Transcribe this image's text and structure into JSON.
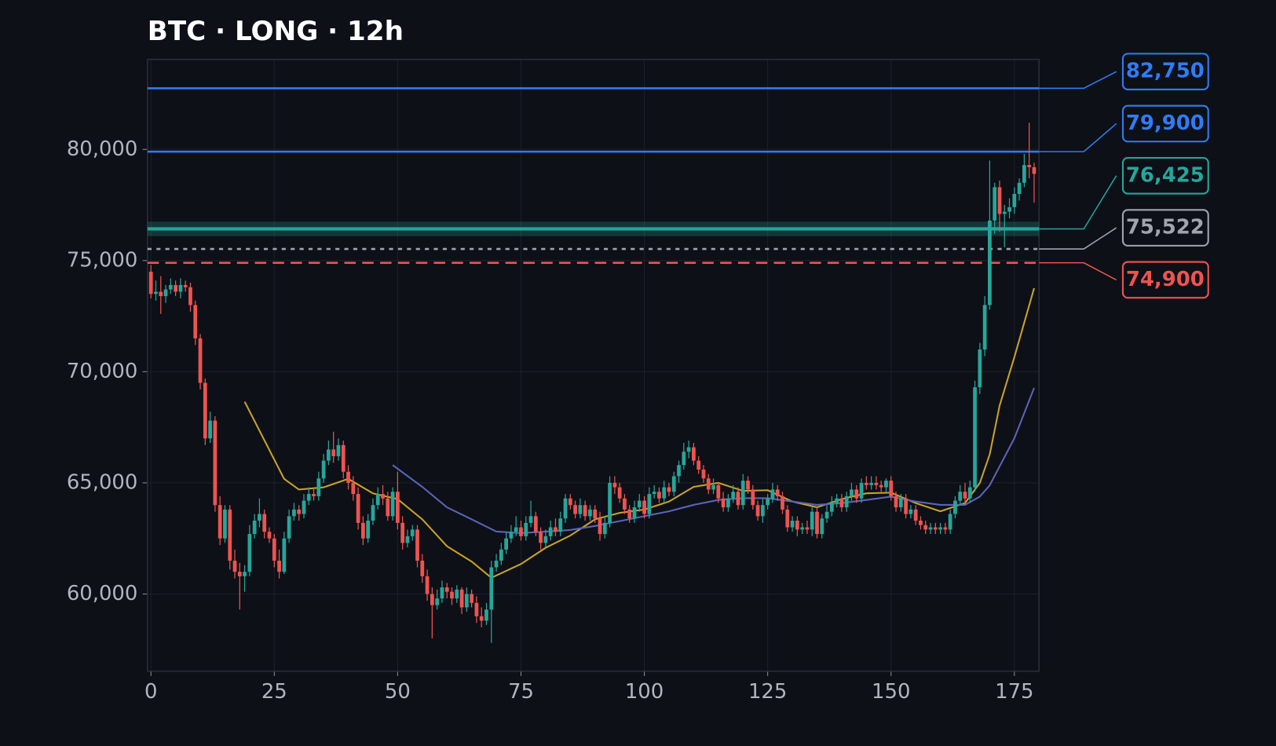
{
  "chart_data": {
    "type": "candlestick",
    "title": "BTC · LONG · 12h",
    "xlim": [
      -0.7,
      180
    ],
    "ylim": [
      56530,
      84050
    ],
    "xticks": [
      0,
      25,
      50,
      75,
      100,
      125,
      150,
      175
    ],
    "yticks": [
      {
        "value": 60000,
        "label": "60,000"
      },
      {
        "value": 65000,
        "label": "65,000"
      },
      {
        "value": 70000,
        "label": "70,000"
      },
      {
        "value": 75000,
        "label": "75,000"
      },
      {
        "value": 80000,
        "label": "80,000"
      }
    ],
    "grid": true,
    "up_color": "#26a69a",
    "down_color": "#ef5350",
    "x": [
      0,
      1,
      2,
      3,
      4,
      5,
      6,
      7,
      8,
      9,
      10,
      11,
      12,
      13,
      14,
      15,
      16,
      17,
      18,
      19,
      20,
      21,
      22,
      23,
      24,
      25,
      26,
      27,
      28,
      29,
      30,
      31,
      32,
      33,
      34,
      35,
      36,
      37,
      38,
      39,
      40,
      41,
      42,
      43,
      44,
      45,
      46,
      47,
      48,
      49,
      50,
      51,
      52,
      53,
      54,
      55,
      56,
      57,
      58,
      59,
      60,
      61,
      62,
      63,
      64,
      65,
      66,
      67,
      68,
      69,
      70,
      71,
      72,
      73,
      74,
      75,
      76,
      77,
      78,
      79,
      80,
      81,
      82,
      83,
      84,
      85,
      86,
      87,
      88,
      89,
      90,
      91,
      92,
      93,
      94,
      95,
      96,
      97,
      98,
      99,
      100,
      101,
      102,
      103,
      104,
      105,
      106,
      107,
      108,
      109,
      110,
      111,
      112,
      113,
      114,
      115,
      116,
      117,
      118,
      119,
      120,
      121,
      122,
      123,
      124,
      125,
      126,
      127,
      128,
      129,
      130,
      131,
      132,
      133,
      134,
      135,
      136,
      137,
      138,
      139,
      140,
      141,
      142,
      143,
      144,
      145,
      146,
      147,
      148,
      149,
      150,
      151,
      152,
      153,
      154,
      155,
      156,
      157,
      158,
      159,
      160,
      161,
      162,
      163,
      164,
      165,
      166,
      167,
      168,
      169,
      170,
      171,
      172,
      173,
      174,
      175,
      176,
      177,
      178,
      179
    ],
    "open": [
      74500,
      73500,
      73600,
      73400,
      73700,
      73900,
      73600,
      73900,
      73800,
      73000,
      71500,
      69500,
      67000,
      67800,
      64000,
      62500,
      63800,
      61500,
      61000,
      60800,
      61000,
      62700,
      63300,
      63600,
      62800,
      62500,
      61500,
      61000,
      62500,
      63500,
      63800,
      63600,
      64200,
      64500,
      64400,
      65200,
      66000,
      66500,
      66200,
      66700,
      65500,
      65000,
      64500,
      63200,
      62500,
      63300,
      64000,
      64500,
      64300,
      63500,
      64600,
      63200,
      62300,
      62600,
      62900,
      61500,
      60800,
      60000,
      59500,
      59800,
      60300,
      60100,
      59800,
      60200,
      59400,
      60000,
      59600,
      59000,
      58800,
      59300,
      61200,
      61500,
      62000,
      62500,
      62800,
      63000,
      62600,
      63200,
      63500,
      62800,
      62300,
      62600,
      63000,
      62800,
      63400,
      64300,
      64000,
      63600,
      64000,
      63500,
      63800,
      63400,
      62700,
      63200,
      65000,
      64800,
      64300,
      63800,
      63400,
      63900,
      64200,
      63600,
      64500,
      64600,
      64300,
      64800,
      64600,
      65300,
      65800,
      66400,
      66600,
      66000,
      65600,
      65200,
      64700,
      64900,
      64300,
      63900,
      64300,
      64600,
      64000,
      65100,
      64700,
      64000,
      63500,
      64000,
      64300,
      64700,
      64400,
      63800,
      63000,
      63300,
      62900,
      63000,
      62900,
      63700,
      62700,
      63400,
      63700,
      64100,
      64300,
      63900,
      64400,
      64700,
      64300,
      65000,
      64900,
      65000,
      64900,
      64800,
      65100,
      64400,
      63900,
      64300,
      63600,
      63800,
      63300,
      63100,
      62900,
      63000,
      62900,
      63000,
      62900,
      63600,
      64200,
      64600,
      64300,
      64800,
      69300,
      71000,
      73000,
      76800,
      78300,
      77100,
      77200,
      77400,
      78000,
      78500,
      79300,
      79200
    ],
    "high": [
      74800,
      74100,
      74300,
      73900,
      74200,
      74100,
      74200,
      74100,
      74000,
      73200,
      71700,
      69700,
      68200,
      68000,
      64400,
      64000,
      64000,
      62000,
      61400,
      61300,
      63100,
      63600,
      64300,
      63800,
      63000,
      62700,
      62000,
      62800,
      63800,
      64100,
      64000,
      64500,
      64800,
      64800,
      65500,
      66300,
      66900,
      67300,
      67000,
      66900,
      65800,
      65300,
      64800,
      63500,
      63600,
      64300,
      64800,
      64900,
      64600,
      64800,
      65500,
      63500,
      62900,
      63100,
      63100,
      61800,
      61100,
      60300,
      60200,
      60600,
      60500,
      60300,
      60400,
      60300,
      60300,
      60200,
      59900,
      59400,
      59600,
      61500,
      61800,
      62300,
      62800,
      63100,
      63500,
      63300,
      63500,
      64200,
      63700,
      63000,
      62900,
      63300,
      63400,
      63700,
      64500,
      64500,
      64200,
      64300,
      64200,
      64000,
      64000,
      63700,
      63500,
      65300,
      65300,
      65000,
      64500,
      64000,
      64200,
      64500,
      64400,
      64800,
      64900,
      64800,
      65100,
      65000,
      65500,
      66000,
      66800,
      66900,
      66800,
      66200,
      65800,
      65400,
      65200,
      65000,
      64600,
      64500,
      64900,
      64800,
      65400,
      65300,
      64900,
      64200,
      64300,
      64500,
      65000,
      64900,
      64600,
      64000,
      63500,
      63500,
      63200,
      63300,
      63900,
      63900,
      63600,
      64000,
      64400,
      64500,
      64500,
      64600,
      65000,
      64900,
      65200,
      65300,
      65300,
      65300,
      65100,
      65200,
      65300,
      64600,
      64500,
      64500,
      64000,
      64000,
      63500,
      63300,
      63200,
      63200,
      63200,
      63200,
      63800,
      64400,
      64900,
      65000,
      65100,
      69600,
      71300,
      73400,
      79500,
      78500,
      78600,
      77500,
      77800,
      78300,
      78700,
      79800,
      81200,
      79400
    ],
    "low": [
      73300,
      73200,
      72600,
      73100,
      73500,
      73400,
      73300,
      73600,
      72700,
      71200,
      69200,
      66700,
      66800,
      63700,
      62200,
      62300,
      61100,
      60700,
      59300,
      60100,
      60800,
      62500,
      63000,
      62500,
      62300,
      61200,
      60700,
      60900,
      62300,
      63300,
      63300,
      63400,
      64000,
      64200,
      64200,
      65000,
      65800,
      65900,
      66000,
      65200,
      64700,
      64200,
      62900,
      62200,
      62300,
      63100,
      63800,
      64000,
      63300,
      63300,
      62900,
      62000,
      62100,
      62400,
      61200,
      60500,
      59700,
      58000,
      59300,
      59600,
      59800,
      59500,
      59600,
      59100,
      59200,
      59400,
      58700,
      58500,
      58600,
      57800,
      61000,
      61300,
      61800,
      62300,
      62600,
      62400,
      62400,
      63000,
      62600,
      62000,
      62100,
      62400,
      62600,
      62600,
      63200,
      63800,
      63400,
      63400,
      63300,
      63300,
      63200,
      62400,
      62500,
      63000,
      64500,
      64100,
      63600,
      63200,
      63200,
      63700,
      63400,
      63400,
      64300,
      64100,
      64100,
      64400,
      64400,
      65000,
      65600,
      66100,
      65800,
      65400,
      65000,
      64500,
      64500,
      64100,
      63700,
      63700,
      64100,
      63800,
      63800,
      64500,
      63800,
      63300,
      63200,
      63800,
      64100,
      64200,
      63600,
      62800,
      62800,
      62600,
      62700,
      62700,
      62600,
      62500,
      62500,
      63200,
      63500,
      63900,
      63700,
      63700,
      64200,
      64100,
      64100,
      64700,
      64700,
      64700,
      64600,
      64600,
      64200,
      63700,
      63700,
      63400,
      63400,
      63100,
      62900,
      62700,
      62700,
      62700,
      62700,
      62700,
      62700,
      63400,
      64000,
      64100,
      64100,
      64600,
      69000,
      70700,
      72800,
      76200,
      76300,
      75600,
      76900,
      77100,
      77700,
      78300,
      78700,
      77600
    ],
    "close": [
      73500,
      73600,
      73400,
      73700,
      73900,
      73600,
      73900,
      73800,
      73000,
      71500,
      69500,
      67000,
      67800,
      64000,
      62500,
      63800,
      61500,
      61000,
      60800,
      61000,
      62700,
      63300,
      63600,
      62800,
      62500,
      61500,
      61000,
      62500,
      63500,
      63800,
      63600,
      64200,
      64500,
      64400,
      65200,
      66000,
      66500,
      66200,
      66700,
      65500,
      65000,
      64500,
      63200,
      62500,
      63300,
      64000,
      64500,
      64300,
      63500,
      64600,
      63200,
      62300,
      62600,
      62900,
      61500,
      60800,
      60000,
      59500,
      59800,
      60300,
      60100,
      59800,
      60200,
      59400,
      60000,
      59600,
      59000,
      58800,
      59300,
      61200,
      61500,
      62000,
      62500,
      62800,
      63000,
      62600,
      63200,
      63500,
      62800,
      62300,
      62600,
      63000,
      62800,
      63400,
      64300,
      64000,
      63600,
      64000,
      63500,
      63800,
      63400,
      62700,
      63200,
      65000,
      64800,
      64300,
      63800,
      63400,
      63900,
      64200,
      63600,
      64500,
      64600,
      64300,
      64800,
      64600,
      65300,
      65800,
      66400,
      66600,
      66000,
      65600,
      65200,
      64700,
      64900,
      64300,
      63900,
      64300,
      64600,
      64000,
      65100,
      64700,
      64000,
      63500,
      64000,
      64300,
      64700,
      64400,
      63800,
      63000,
      63300,
      62900,
      63000,
      62900,
      63700,
      62700,
      63400,
      63700,
      64100,
      64300,
      63900,
      64400,
      64700,
      64300,
      65000,
      64900,
      65000,
      64900,
      64800,
      65100,
      64400,
      63900,
      64300,
      63600,
      63800,
      63300,
      63100,
      62900,
      63000,
      62900,
      63000,
      62900,
      63600,
      64200,
      64600,
      64300,
      64800,
      69300,
      71000,
      73000,
      76800,
      78300,
      77100,
      77200,
      77400,
      78000,
      78500,
      79300,
      79200,
      78900
    ],
    "lines": [
      {
        "color": "#c9a227",
        "x": [
          19,
          27,
          30,
          35,
          40,
          45,
          50,
          55,
          60,
          65,
          69,
          75,
          80,
          85,
          90,
          95,
          100,
          105,
          110,
          115,
          120,
          125,
          130,
          135,
          140,
          145,
          150,
          155,
          160,
          165,
          168,
          170,
          172,
          175,
          179
        ],
        "values": [
          68650,
          65180,
          64700,
          64800,
          65180,
          64530,
          64270,
          63360,
          62150,
          61460,
          60730,
          61350,
          62080,
          62630,
          63360,
          63650,
          63800,
          64160,
          64820,
          65000,
          64640,
          64670,
          64160,
          63900,
          64270,
          64530,
          64560,
          64090,
          63720,
          64090,
          65000,
          66280,
          68470,
          70660,
          73760
        ]
      },
      {
        "color": "#5b63b8",
        "x": [
          49,
          55,
          60,
          65,
          70,
          75,
          80,
          85,
          90,
          95,
          100,
          105,
          110,
          115,
          120,
          125,
          130,
          135,
          140,
          145,
          150,
          155,
          160,
          165,
          168,
          170,
          175,
          179
        ],
        "values": [
          65800,
          64820,
          63900,
          63360,
          62810,
          62740,
          62810,
          62880,
          63060,
          63280,
          63500,
          63720,
          64010,
          64230,
          64310,
          64310,
          64160,
          64010,
          64090,
          64230,
          64380,
          64160,
          64010,
          64010,
          64380,
          64890,
          67010,
          69270
        ]
      }
    ],
    "levels": [
      {
        "value": 82750,
        "label": "82,750",
        "color": "#2f7cf6",
        "style": "solid"
      },
      {
        "value": 79900,
        "label": "79,900",
        "color": "#2f7cf6",
        "style": "solid"
      },
      {
        "value": 76425,
        "label": "76,425",
        "color": "#26a69a",
        "style": "solid",
        "band": [
          76100,
          76750
        ]
      },
      {
        "value": 75522,
        "label": "75,522",
        "color": "#a0a4ad",
        "style": "dotted"
      },
      {
        "value": 74900,
        "label": "74,900",
        "color": "#ef5350",
        "style": "dashed"
      }
    ]
  }
}
